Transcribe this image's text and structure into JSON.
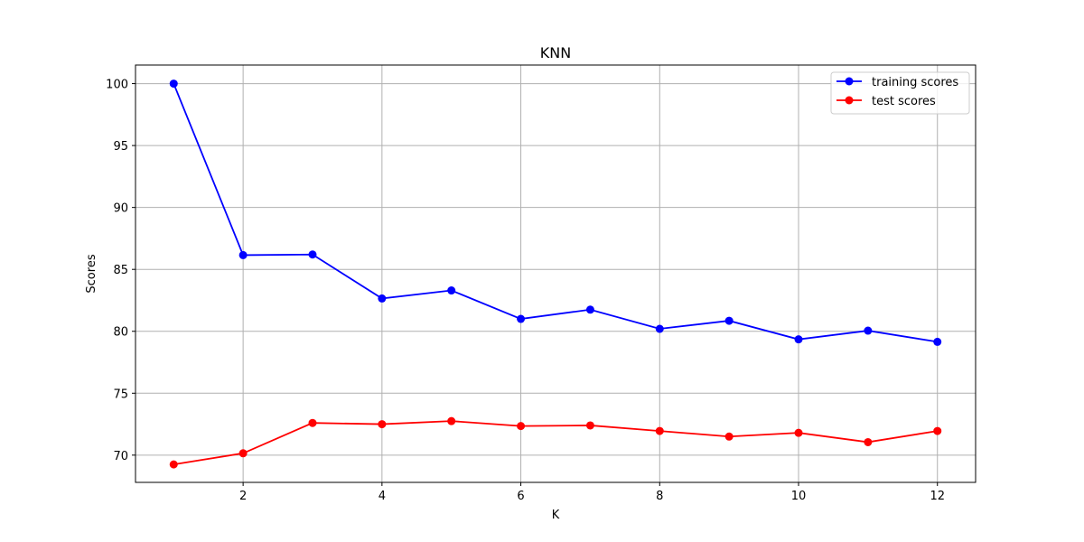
{
  "chart_data": {
    "type": "line",
    "title": "KNN",
    "xlabel": "K",
    "ylabel": "Scores",
    "x": [
      1,
      2,
      3,
      4,
      5,
      6,
      7,
      8,
      9,
      10,
      11,
      12
    ],
    "xlim": [
      0.45,
      12.55
    ],
    "ylim": [
      67.8,
      101.5
    ],
    "xticks": [
      2,
      4,
      6,
      8,
      10,
      12
    ],
    "yticks": [
      70,
      75,
      80,
      85,
      90,
      95,
      100
    ],
    "grid": true,
    "legend_position": "top-right",
    "series": [
      {
        "name": "training scores",
        "color": "#0000ff",
        "marker": "circle",
        "values": [
          100.0,
          86.15,
          86.2,
          82.65,
          83.3,
          81.0,
          81.75,
          80.2,
          80.85,
          79.35,
          80.05,
          79.15
        ]
      },
      {
        "name": "test scores",
        "color": "#ff0000",
        "marker": "circle",
        "values": [
          69.25,
          70.15,
          72.6,
          72.5,
          72.75,
          72.35,
          72.4,
          71.95,
          71.5,
          71.8,
          71.05,
          71.95
        ]
      }
    ]
  }
}
